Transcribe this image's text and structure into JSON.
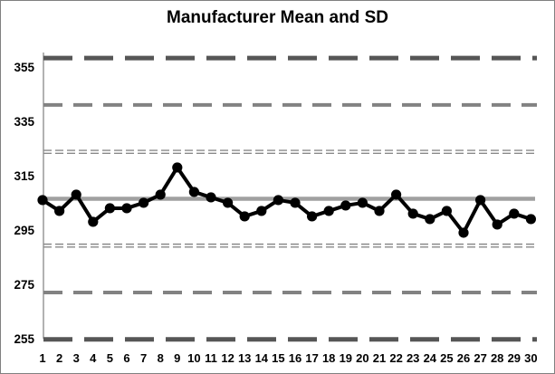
{
  "chart_data": {
    "type": "line",
    "title": "Manufacturer Mean and SD",
    "x": [
      1,
      2,
      3,
      4,
      5,
      6,
      7,
      8,
      9,
      10,
      11,
      12,
      13,
      14,
      15,
      16,
      17,
      18,
      19,
      20,
      21,
      22,
      23,
      24,
      25,
      26,
      27,
      28,
      29,
      30
    ],
    "values": [
      306,
      302,
      308,
      298,
      303,
      303,
      305,
      308,
      318,
      309,
      307,
      305,
      300,
      302,
      306,
      305,
      300,
      302,
      304,
      305,
      302,
      308,
      301,
      299,
      302,
      294,
      306,
      297,
      301,
      299
    ],
    "series_name": "measured-values",
    "line_color": "#000000",
    "marker": "circle",
    "marker_color": "#000000",
    "y_ticks": [
      255,
      275,
      295,
      315,
      335,
      355
    ],
    "ylim": [
      255,
      360.3
    ],
    "grid": false,
    "legend": "none",
    "mean": 306.5,
    "sd": 17.25,
    "reference_lines": [
      {
        "name": "plus-3sd",
        "value": 358.25,
        "style": "dashed-thick",
        "color": "#565656"
      },
      {
        "name": "plus-2sd",
        "value": 341.0,
        "style": "dashed-medium",
        "color": "#828282"
      },
      {
        "name": "plus-1sd",
        "value": 323.75,
        "style": "double-dashed-thin",
        "color": "#8a8a8a"
      },
      {
        "name": "mean",
        "value": 306.5,
        "style": "solid",
        "color": "#a0a0a0"
      },
      {
        "name": "minus-1sd",
        "value": 289.25,
        "style": "double-dashed-thin",
        "color": "#8a8a8a"
      },
      {
        "name": "minus-2sd",
        "value": 272.0,
        "style": "dashed-medium",
        "color": "#828282"
      },
      {
        "name": "minus-3sd",
        "value": 254.75,
        "style": "dashed-thick",
        "color": "#565656"
      }
    ]
  }
}
